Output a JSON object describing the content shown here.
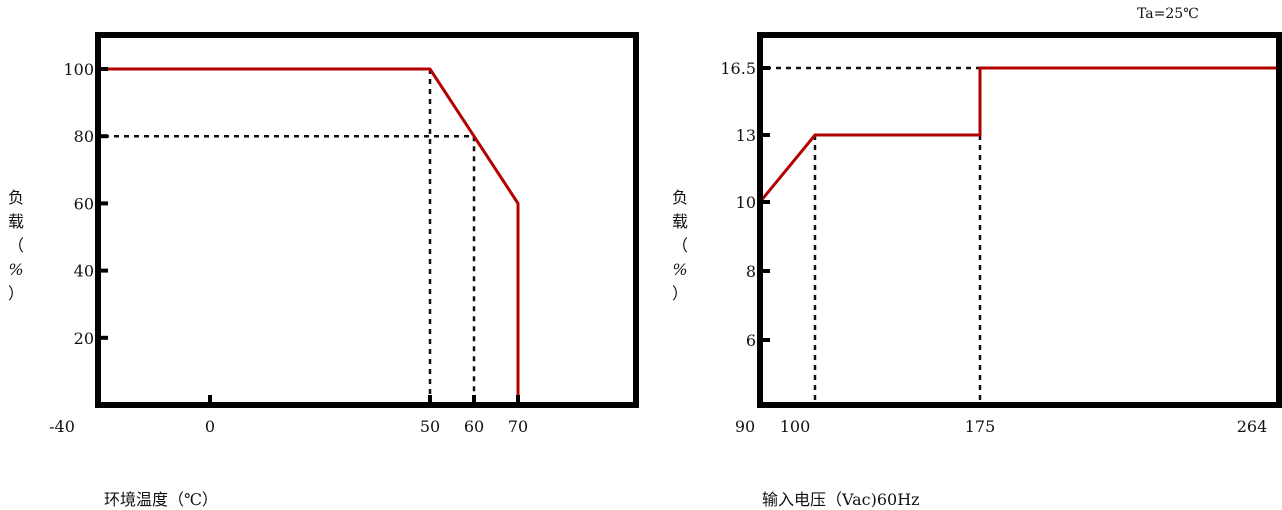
{
  "chart_data": [
    {
      "type": "line",
      "ylabel_chars": [
        "负",
        "载",
        "（",
        "%",
        "）"
      ],
      "xlabel": "环境温度（℃）",
      "x_ticks": [
        -40,
        0,
        50,
        60,
        70
      ],
      "y_ticks": [
        20,
        40,
        60,
        80,
        100
      ],
      "xlim": [
        -40,
        88
      ],
      "ylim": [
        0,
        110
      ],
      "series": [
        {
          "color": "#b30000",
          "x": [
            -40,
            50,
            70,
            70
          ],
          "y": [
            100,
            100,
            60,
            0
          ]
        }
      ],
      "guides": {
        "verticals": [
          {
            "x": 50,
            "y": 100
          },
          {
            "x": 60,
            "y": 80
          }
        ],
        "horizontals": [
          {
            "x": 60,
            "y": 80
          }
        ]
      }
    },
    {
      "type": "line",
      "ylabel_chars": [
        "负",
        "载",
        "（",
        "%",
        "）"
      ],
      "xlabel": "输入电压（Vac)60Hz",
      "annotation": "Ta=25℃",
      "x_ticks": [
        {
          "v": 90,
          "label": "90"
        },
        {
          "v": 100,
          "label": "100"
        },
        {
          "v": 175,
          "label": "175"
        },
        {
          "v": 264,
          "label": "264"
        }
      ],
      "y_ticks": [
        {
          "v": 6,
          "label": "6"
        },
        {
          "v": 8,
          "label": "8"
        },
        {
          "v": 10,
          "label": "10"
        },
        {
          "v": 13,
          "label": "13"
        },
        {
          "v": 16.5,
          "label": "16.5"
        }
      ],
      "y_tick_positions": [
        6,
        8,
        10,
        12,
        14
      ],
      "xlim": [
        90,
        264
      ],
      "series": [
        {
          "color": "#b30000",
          "x": [
            90,
            110,
            175,
            175,
            264
          ],
          "y": [
            10,
            13,
            13,
            16.5,
            16.5
          ]
        }
      ],
      "guides": {
        "verticals": [
          {
            "x": 110,
            "y": 13
          },
          {
            "x": 175,
            "y": 13
          }
        ],
        "horizontals": [
          {
            "x": 175,
            "y": 16.5
          }
        ]
      }
    }
  ]
}
